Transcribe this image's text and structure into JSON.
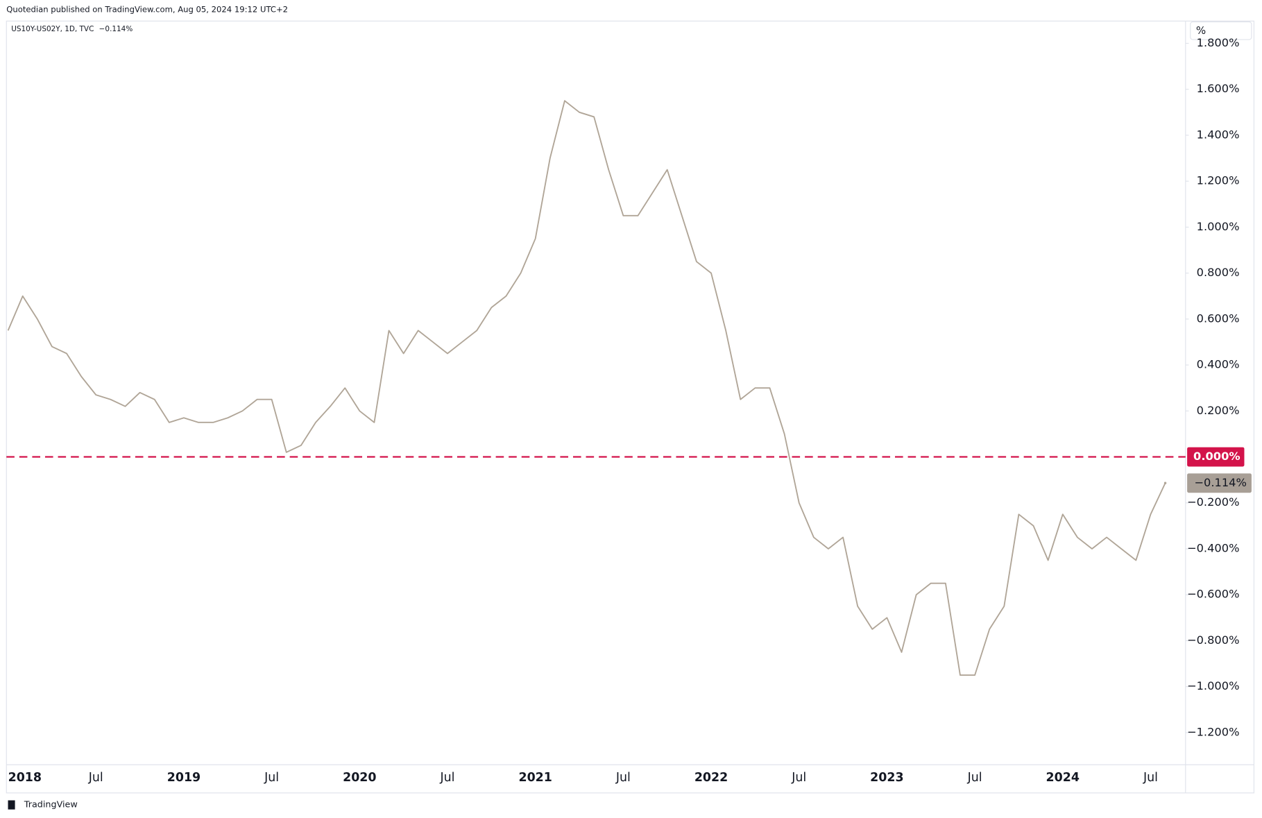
{
  "header": {
    "publisher": "Quotedian published on TradingView.com, Aug 05, 2024 19:12 UTC+2",
    "symbol": "US10Y-US02Y, 1D, TVC",
    "scale_button": "%",
    "brand": "TradingView"
  },
  "chart_data": {
    "type": "line",
    "categories": [
      "2018",
      null,
      null,
      null,
      null,
      null,
      "Jul",
      null,
      null,
      null,
      null,
      null,
      "2019",
      null,
      null,
      null,
      null,
      null,
      "Jul",
      null,
      null,
      null,
      null,
      null,
      "2020",
      null,
      null,
      null,
      null,
      null,
      "Jul",
      null,
      null,
      null,
      null,
      null,
      "2021",
      null,
      null,
      null,
      null,
      null,
      "Jul",
      null,
      null,
      null,
      null,
      null,
      "2022",
      null,
      null,
      null,
      null,
      null,
      "Jul",
      null,
      null,
      null,
      null,
      null,
      "2023",
      null,
      null,
      null,
      null,
      null,
      "Jul",
      null,
      null,
      null,
      null,
      null,
      "2024",
      null,
      null,
      null,
      null,
      null,
      "Jul",
      null
    ],
    "series": [
      {
        "name": "US10Y-US02Y",
        "color": "#b0a597",
        "last_label": "−0.114%",
        "label_color": "#a89f96",
        "values": [
          0.55,
          0.7,
          0.6,
          0.48,
          0.45,
          0.35,
          0.27,
          0.25,
          0.22,
          0.28,
          0.25,
          0.15,
          0.17,
          0.15,
          0.15,
          0.17,
          0.2,
          0.25,
          0.25,
          0.02,
          0.05,
          0.15,
          0.22,
          0.3,
          0.2,
          0.15,
          0.55,
          0.45,
          0.55,
          0.5,
          0.45,
          0.5,
          0.55,
          0.65,
          0.7,
          0.8,
          0.95,
          1.3,
          1.55,
          1.5,
          1.48,
          1.25,
          1.05,
          1.05,
          1.15,
          1.25,
          1.05,
          0.85,
          0.8,
          0.55,
          0.25,
          0.3,
          0.3,
          0.1,
          -0.2,
          -0.35,
          -0.4,
          -0.35,
          -0.65,
          -0.75,
          -0.7,
          -0.85,
          -0.6,
          -0.55,
          -0.55,
          -0.95,
          -0.95,
          -0.75,
          -0.65,
          -0.25,
          -0.3,
          -0.45,
          -0.25,
          -0.35,
          -0.4,
          -0.35,
          -0.4,
          -0.45,
          -0.25,
          -0.114
        ]
      }
    ],
    "reference_line": {
      "value": 0,
      "label": "0.000%",
      "color": "#d3134a"
    },
    "ylim": [
      -1.34,
      1.89
    ],
    "yticks": [
      {
        "value": -1.2,
        "label": "−1.200%"
      },
      {
        "value": -1,
        "label": "−1.000%"
      },
      {
        "value": -0.8,
        "label": "−0.800%"
      },
      {
        "value": -0.6,
        "label": "−0.600%"
      },
      {
        "value": -0.4,
        "label": "−0.400%"
      },
      {
        "value": -0.2,
        "label": "−0.200%"
      },
      {
        "value": 0.2,
        "label": "0.200%"
      },
      {
        "value": 0.4,
        "label": "0.400%"
      },
      {
        "value": 0.6,
        "label": "0.600%"
      },
      {
        "value": 0.8,
        "label": "0.800%"
      },
      {
        "value": 1,
        "label": "1.000%"
      },
      {
        "value": 1.2,
        "label": "1.200%"
      },
      {
        "value": 1.4,
        "label": "1.400%"
      },
      {
        "value": 1.6,
        "label": "1.600%"
      },
      {
        "value": 1.8,
        "label": "1.800%"
      }
    ],
    "grid": false
  }
}
